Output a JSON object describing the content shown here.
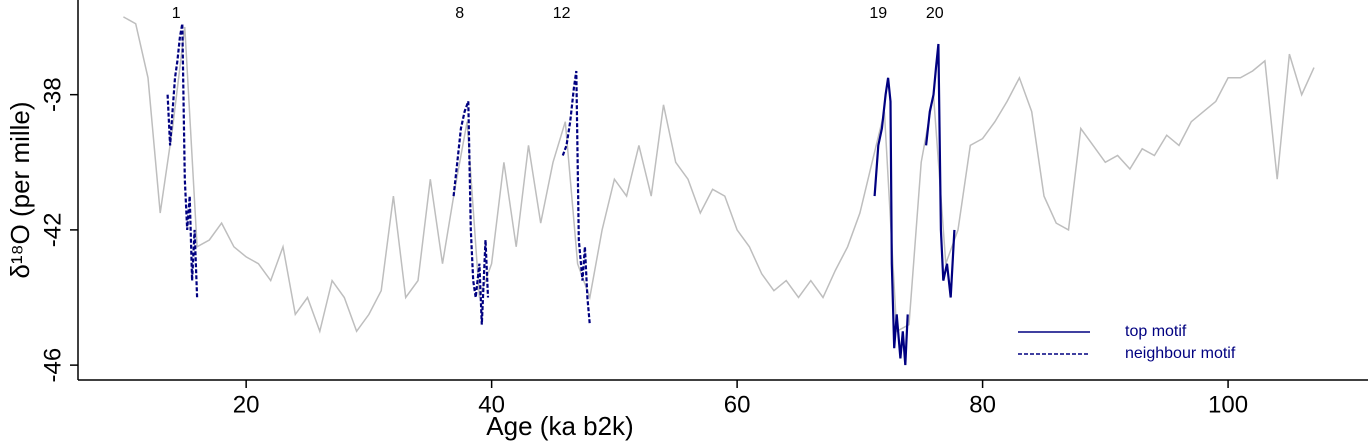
{
  "chart_data": {
    "type": "line",
    "x_label": "Age (ka b2k)",
    "y_label": "δ¹⁸O (per mille)",
    "xlim": [
      6.3,
      111.4
    ],
    "ylim": [
      -46.44,
      -35.2
    ],
    "xticks": [
      20,
      40,
      60,
      80,
      100
    ],
    "yticks": [
      -38,
      -42,
      -46
    ],
    "series": [
      {
        "color": "#bebebe",
        "style": "solid",
        "x": [
          10,
          11,
          12,
          13,
          14,
          15,
          16,
          17,
          18,
          19,
          20,
          21,
          22,
          23,
          24,
          25,
          26,
          27,
          28,
          29,
          30,
          31,
          32,
          33,
          34,
          35,
          36,
          37,
          38,
          39,
          40,
          41,
          42,
          43,
          44,
          45,
          46,
          47,
          48,
          49,
          50,
          51,
          52,
          53,
          54,
          55,
          56,
          57,
          58,
          59,
          60,
          61,
          62,
          63,
          64,
          65,
          66,
          67,
          68,
          69,
          70,
          71,
          72,
          73,
          74,
          75,
          76,
          77,
          78,
          79,
          80,
          81,
          82,
          83,
          84,
          85,
          86,
          87,
          88,
          89,
          90,
          91,
          92,
          93,
          94,
          95,
          96,
          97,
          98,
          99,
          100,
          101,
          102,
          103,
          104,
          105,
          106,
          107
        ],
        "values": [
          -35.7,
          -35.9,
          -37.5,
          -41.5,
          -39,
          -36,
          -42.5,
          -42.3,
          -41.8,
          -42.5,
          -42.8,
          -43,
          -43.5,
          -42.5,
          -44.5,
          -44,
          -45,
          -43.5,
          -44,
          -45,
          -44.5,
          -43.8,
          -41,
          -44,
          -43.5,
          -40.5,
          -43,
          -40.8,
          -38.8,
          -44,
          -43,
          -40,
          -42.5,
          -39.5,
          -41.8,
          -40,
          -38.8,
          -43,
          -44,
          -42,
          -40.5,
          -41,
          -39.5,
          -41,
          -38.3,
          -40,
          -40.5,
          -41.5,
          -40.8,
          -41,
          -42,
          -42.5,
          -43.3,
          -43.8,
          -43.5,
          -44,
          -43.5,
          -44,
          -43.2,
          -42.5,
          -41.5,
          -40,
          -38.5,
          -45,
          -44.8,
          -40,
          -38,
          -43,
          -42,
          -39.5,
          -39.3,
          -38.8,
          -38.2,
          -37.5,
          -38.5,
          -41,
          -41.8,
          -42,
          -39,
          -39.5,
          -40,
          -39.8,
          -40.2,
          -39.6,
          -39.8,
          -39.2,
          -39.5,
          -38.8,
          -38.5,
          -38.2,
          -37.5,
          -37.5,
          -37.3,
          -37,
          -40.5,
          -36.8,
          -38,
          -37.2
        ]
      },
      {
        "color": "#000080",
        "style": "dashed",
        "x": [
          13.6,
          13.8,
          14,
          14.2,
          14.4,
          14.6,
          14.8,
          15,
          15.2,
          15.4,
          15.6,
          15.8,
          16
        ],
        "values": [
          -38,
          -39.5,
          -38.5,
          -37.5,
          -37,
          -36.3,
          -35.9,
          -40.5,
          -42,
          -41,
          -43.5,
          -42,
          -44
        ]
      },
      {
        "color": "#000080",
        "style": "dashed",
        "x": [
          36.9,
          37.2,
          37.5,
          37.8,
          38.1,
          38.3,
          38.5,
          38.7,
          39,
          39.2,
          39.5,
          39.7
        ],
        "values": [
          -41,
          -40,
          -39,
          -38.5,
          -38.2,
          -42,
          -43.5,
          -44,
          -43,
          -44.8,
          -42.3,
          -44
        ]
      },
      {
        "color": "#000080",
        "style": "dashed",
        "x": [
          45.8,
          46.1,
          46.4,
          46.7,
          46.9,
          47.1,
          47.4,
          47.6,
          47.8,
          48
        ],
        "values": [
          -39.8,
          -39.5,
          -38.8,
          -37.8,
          -37.3,
          -42.3,
          -43.5,
          -42.5,
          -44,
          -44.8
        ]
      },
      {
        "color": "#000080",
        "style": "solid",
        "x": [
          71.2,
          71.5,
          71.8,
          72.1,
          72.3,
          72.5,
          72.6,
          72.8,
          73,
          73.3,
          73.5,
          73.7,
          73.9
        ],
        "values": [
          -41,
          -39.5,
          -39,
          -38,
          -37.5,
          -38.2,
          -43,
          -45.5,
          -44.5,
          -45.8,
          -45,
          -46,
          -44.5
        ]
      },
      {
        "color": "#000080",
        "style": "solid",
        "x": [
          75.4,
          75.7,
          76,
          76.2,
          76.4,
          76.6,
          76.8,
          77.1,
          77.4,
          77.7
        ],
        "values": [
          -39.5,
          -38.5,
          -38,
          -37.2,
          -36.5,
          -42,
          -43.5,
          -43,
          -44,
          -42
        ]
      }
    ],
    "annotations": [
      {
        "text": "1",
        "x": 14.3
      },
      {
        "text": "8",
        "x": 37.4
      },
      {
        "text": "12",
        "x": 45.7
      },
      {
        "text": "19",
        "x": 71.5
      },
      {
        "text": "20",
        "x": 76.1
      }
    ],
    "legend_position": "bottom-right",
    "legend": [
      {
        "label": "top motif",
        "style": "solid",
        "color": "#000080"
      },
      {
        "label": "neighbour motif",
        "style": "dashed",
        "color": "#000080"
      }
    ]
  }
}
